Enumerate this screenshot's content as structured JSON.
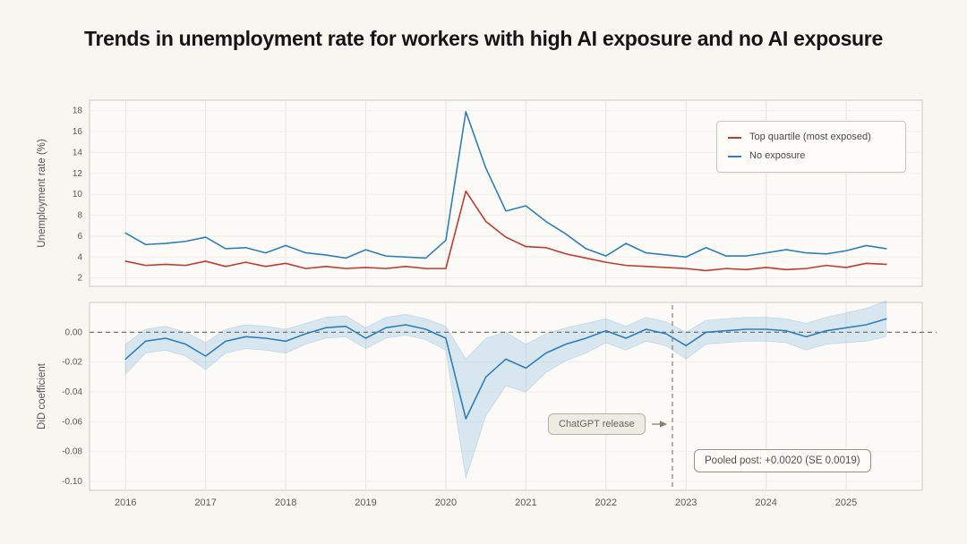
{
  "page": {
    "title": "Trends in unemployment rate for workers with high AI exposure and no AI exposure",
    "background": "#f8f6f1"
  },
  "chart_data": [
    {
      "type": "line",
      "panel": "top",
      "ylabel": "Unemployment rate (%)",
      "x_start": 2016.0,
      "x_step": 0.25,
      "ylim": [
        2,
        18
      ],
      "ytick_values": [
        2,
        4,
        6,
        8,
        10,
        12,
        14,
        16,
        18
      ],
      "ytick_labels": [
        "2",
        "4",
        "6",
        "8",
        "10",
        "12",
        "14",
        "16",
        "18"
      ],
      "xtick_values": [
        2016,
        2017,
        2018,
        2019,
        2020,
        2021,
        2022,
        2023,
        2024,
        2025
      ],
      "xtick_labels": [
        "2016",
        "2017",
        "2018",
        "2019",
        "2020",
        "2021",
        "2022",
        "2023",
        "2024",
        "2025"
      ],
      "grid": true,
      "legend_position": "top-right",
      "series": [
        {
          "name": "Top quartile (most exposed)",
          "color": "#c23b33",
          "values": [
            3.6,
            3.2,
            3.3,
            3.2,
            3.6,
            3.1,
            3.5,
            3.1,
            3.4,
            2.9,
            3.1,
            2.9,
            3.0,
            2.9,
            3.1,
            2.9,
            2.9,
            10.3,
            7.4,
            5.9,
            5.0,
            4.9,
            4.3,
            3.9,
            3.5,
            3.2,
            3.1,
            3.0,
            2.9,
            2.7,
            2.9,
            2.8,
            3.0,
            2.8,
            2.9,
            3.2,
            3.0,
            3.4,
            3.3
          ]
        },
        {
          "name": "No exposure",
          "color": "#2e7fba",
          "values": [
            6.3,
            5.2,
            5.3,
            5.5,
            5.9,
            4.8,
            4.9,
            4.4,
            5.1,
            4.4,
            4.2,
            3.9,
            4.7,
            4.1,
            4.0,
            3.9,
            5.6,
            17.9,
            12.5,
            8.4,
            8.9,
            7.4,
            6.2,
            4.8,
            4.1,
            5.3,
            4.4,
            4.2,
            4.0,
            4.9,
            4.1,
            4.1,
            4.4,
            4.7,
            4.4,
            4.3,
            4.6,
            5.1,
            4.8
          ]
        }
      ]
    },
    {
      "type": "line",
      "panel": "bottom",
      "ylabel": "DiD coefficient",
      "x_start": 2016.0,
      "x_step": 0.25,
      "ylim": [
        -0.1,
        0.01
      ],
      "ytick_values": [
        0.0,
        -0.02,
        -0.04,
        -0.06,
        -0.08,
        -0.1
      ],
      "ytick_labels": [
        "0.00",
        "-0.02",
        "-0.04",
        "-0.06",
        "-0.08",
        "-0.10"
      ],
      "xtick_values": [
        2016,
        2017,
        2018,
        2019,
        2020,
        2021,
        2022,
        2023,
        2024,
        2025
      ],
      "xtick_labels": [
        "2016",
        "2017",
        "2018",
        "2019",
        "2020",
        "2021",
        "2022",
        "2023",
        "2024",
        "2025"
      ],
      "grid": true,
      "zero_line": true,
      "series": [
        {
          "name": "DiD coefficient",
          "color": "#2e7fba",
          "values": [
            -0.018,
            -0.006,
            -0.004,
            -0.008,
            -0.016,
            -0.006,
            -0.003,
            -0.004,
            -0.006,
            -0.001,
            0.003,
            0.004,
            -0.004,
            0.003,
            0.005,
            0.002,
            -0.004,
            -0.058,
            -0.03,
            -0.018,
            -0.024,
            -0.014,
            -0.008,
            -0.004,
            0.001,
            -0.004,
            0.002,
            -0.001,
            -0.009,
            0.0,
            0.001,
            0.002,
            0.002,
            0.001,
            -0.003,
            0.001,
            0.003,
            0.005,
            0.009
          ]
        }
      ],
      "band": {
        "color": "#7fb3e0",
        "half_width": [
          0.01,
          0.008,
          0.008,
          0.008,
          0.009,
          0.008,
          0.008,
          0.008,
          0.008,
          0.007,
          0.007,
          0.007,
          0.007,
          0.007,
          0.007,
          0.007,
          0.008,
          0.04,
          0.026,
          0.018,
          0.016,
          0.013,
          0.011,
          0.01,
          0.008,
          0.008,
          0.008,
          0.008,
          0.009,
          0.008,
          0.008,
          0.008,
          0.008,
          0.008,
          0.009,
          0.009,
          0.01,
          0.011,
          0.012
        ]
      },
      "event_line": {
        "x": 2022.83,
        "label": "ChatGPT release"
      },
      "annotation": "Pooled post: +0.0020 (SE 0.0019)"
    }
  ],
  "colors": {
    "red_line": "#c23b33",
    "blue_line": "#2e7fba",
    "band_fill": "#7fb3e0",
    "panel_bg": "#fbfaf6",
    "panel_border": "#ccc9c0",
    "grid": "#e6e4db",
    "dashed": "#666666"
  }
}
